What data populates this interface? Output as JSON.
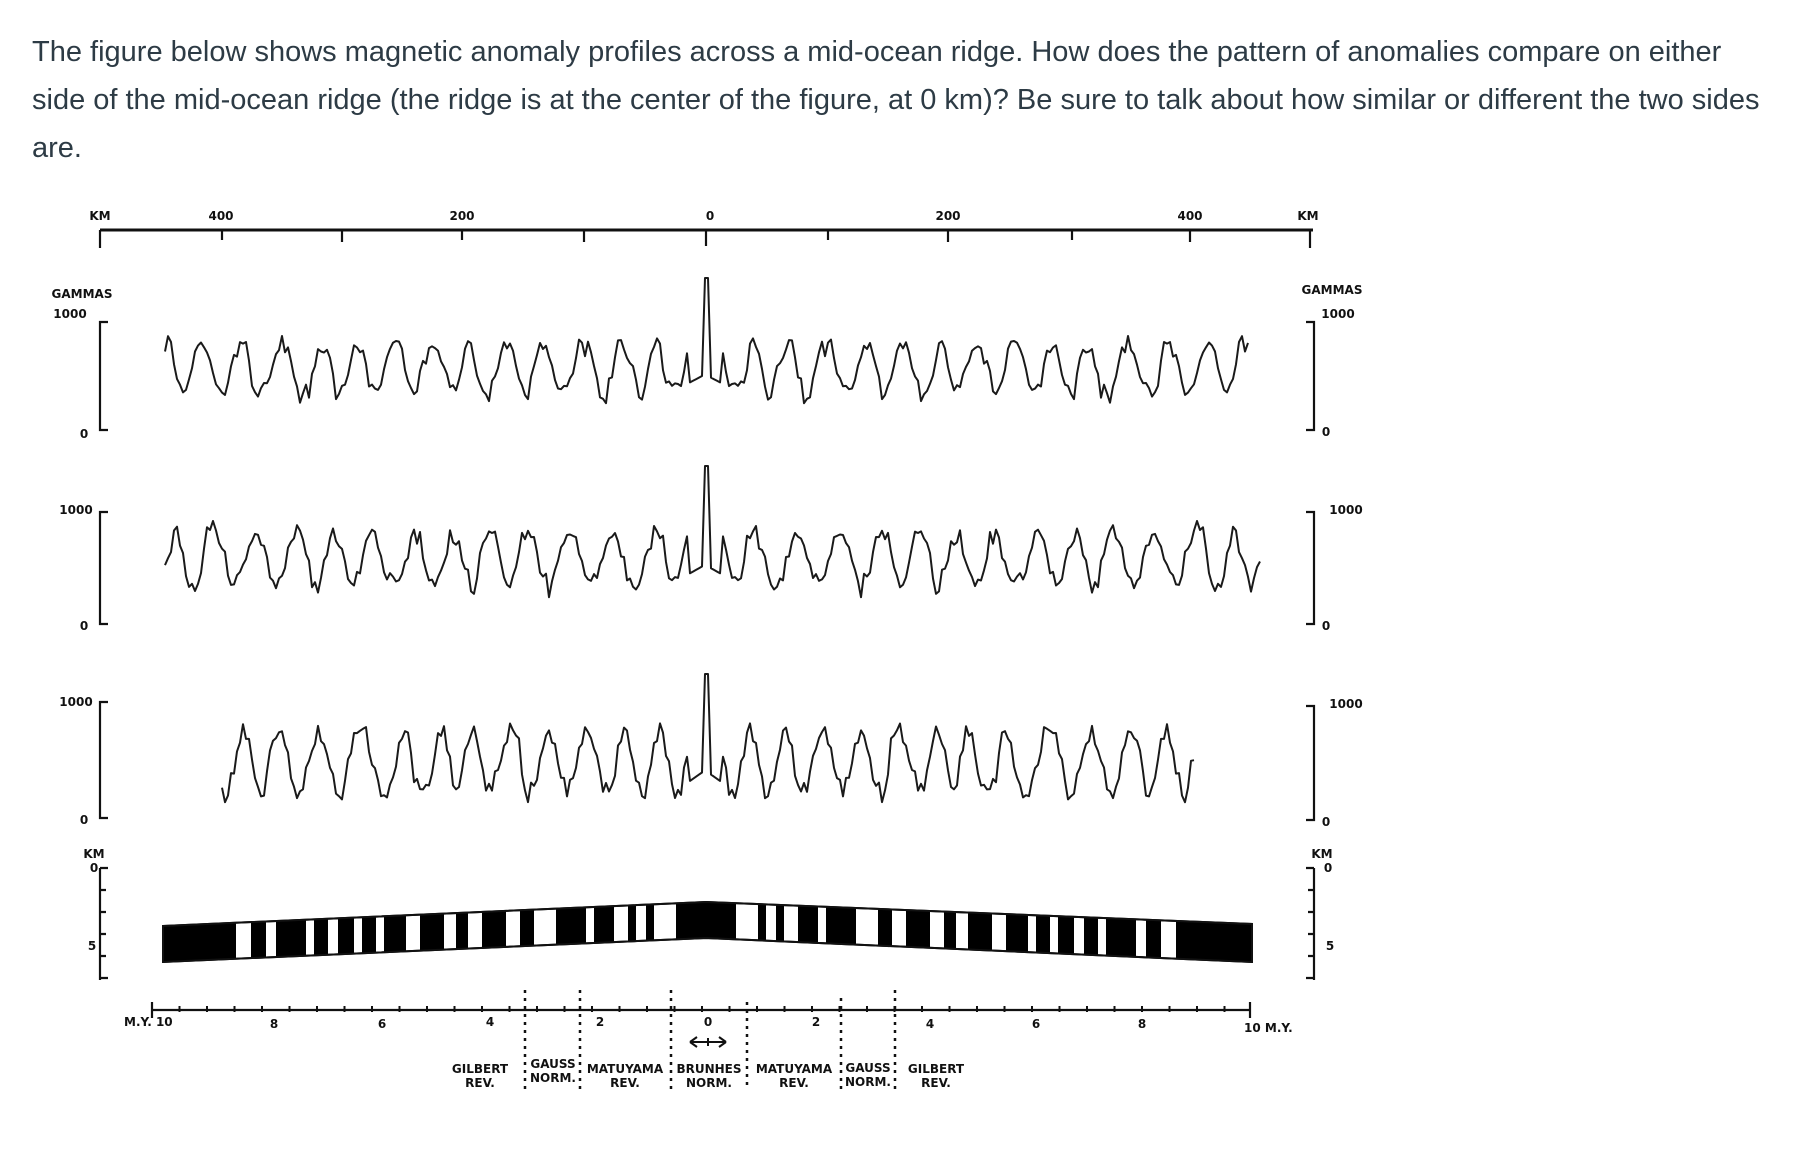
{
  "question": "The figure below shows magnetic anomaly profiles across a mid-ocean ridge. How does the pattern of anomalies compare on either side of the mid-ocean ridge (the ridge is at the center of the figure, at 0 km)?  Be sure to talk about how similar or different the two sides are.",
  "figure": {
    "top_axis": {
      "unit_left": "KM",
      "unit_right": "KM",
      "ticks": [
        "400",
        "200",
        "0",
        "200",
        "400"
      ]
    },
    "profiles": [
      {
        "scale_left_label": "GAMMAS",
        "scale_left_top": "1000",
        "scale_left_bottom": "0",
        "scale_right_label": "GAMMAS",
        "scale_right_top": "1000",
        "scale_right_bottom": "0"
      },
      {
        "scale_left_top": "1000",
        "scale_left_bottom": "0",
        "scale_right_top": "1000",
        "scale_right_bottom": "0"
      },
      {
        "scale_left_top": "1000",
        "scale_left_bottom": "0",
        "scale_right_top": "1000",
        "scale_right_bottom": "0"
      }
    ],
    "depth_scale": {
      "left_unit": "KM",
      "left_top": "0",
      "left_bottom": "5",
      "right_unit": "KM",
      "right_top": "0",
      "right_bottom": "5"
    },
    "time_axis": {
      "left_label": "M.Y. 10",
      "right_label": "10 M.Y.",
      "ticks": [
        "8",
        "6",
        "4",
        "2",
        "0",
        "2",
        "4",
        "6",
        "8"
      ]
    },
    "epochs": [
      {
        "name": "GILBERT",
        "polarity": "REV."
      },
      {
        "name": "GAUSS",
        "polarity": "NORM."
      },
      {
        "name": "MATUYAMA",
        "polarity": "REV."
      },
      {
        "name": "BRUNHES",
        "polarity": "NORM."
      },
      {
        "name": "MATUYAMA",
        "polarity": "REV."
      },
      {
        "name": "GAUSS",
        "polarity": "NORM."
      },
      {
        "name": "GILBERT",
        "polarity": "REV."
      }
    ]
  }
}
